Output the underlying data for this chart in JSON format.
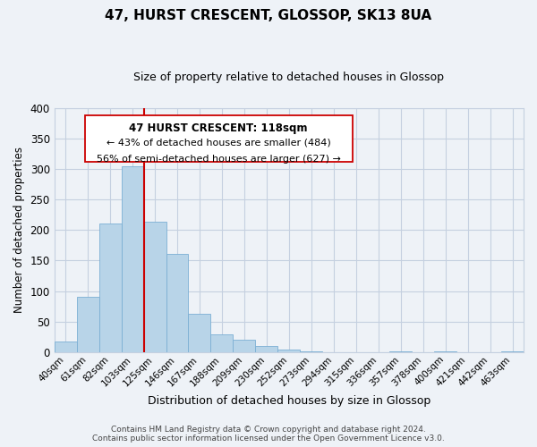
{
  "title": "47, HURST CRESCENT, GLOSSOP, SK13 8UA",
  "subtitle": "Size of property relative to detached houses in Glossop",
  "xlabel": "Distribution of detached houses by size in Glossop",
  "ylabel": "Number of detached properties",
  "bar_labels": [
    "40sqm",
    "61sqm",
    "82sqm",
    "103sqm",
    "125sqm",
    "146sqm",
    "167sqm",
    "188sqm",
    "209sqm",
    "230sqm",
    "252sqm",
    "273sqm",
    "294sqm",
    "315sqm",
    "336sqm",
    "357sqm",
    "378sqm",
    "400sqm",
    "421sqm",
    "442sqm",
    "463sqm"
  ],
  "bar_values": [
    17,
    90,
    211,
    305,
    213,
    161,
    63,
    30,
    20,
    10,
    4,
    1,
    0,
    0,
    0,
    1,
    0,
    1,
    0,
    0,
    1
  ],
  "bar_color": "#b8d4e8",
  "bar_edge_color": "#7bafd4",
  "vline_index": 3.5,
  "vline_color": "#cc0000",
  "ylim": [
    0,
    400
  ],
  "yticks": [
    0,
    50,
    100,
    150,
    200,
    250,
    300,
    350,
    400
  ],
  "annotation_line1": "47 HURST CRESCENT: 118sqm",
  "annotation_line2": "← 43% of detached houses are smaller (484)",
  "annotation_line3": "56% of semi-detached houses are larger (627) →",
  "footer_line1": "Contains HM Land Registry data © Crown copyright and database right 2024.",
  "footer_line2": "Contains public sector information licensed under the Open Government Licence v3.0.",
  "background_color": "#eef2f7",
  "plot_bg_color": "#eef2f7",
  "grid_color": "#c5d0e0",
  "title_fontsize": 11,
  "subtitle_fontsize": 9
}
